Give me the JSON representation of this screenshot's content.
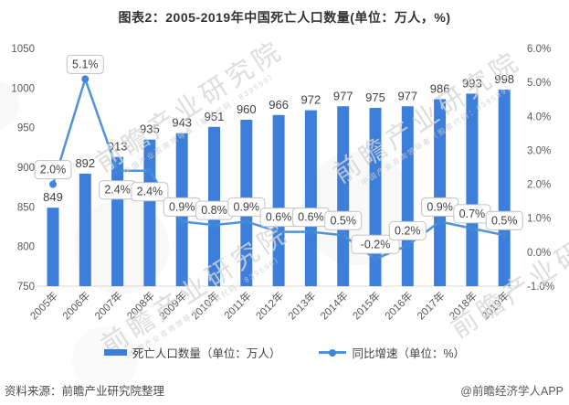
{
  "title": "图表2：2005-2019年中国死亡人口数量(单位：万人，%)",
  "chart_data": {
    "type": "bar",
    "categories": [
      "2005年",
      "2006年",
      "2007年",
      "2008年",
      "2009年",
      "2010年",
      "2011年",
      "2012年",
      "2013年",
      "2014年",
      "2015年",
      "2016年",
      "2017年",
      "2018年",
      "2019年"
    ],
    "series": [
      {
        "name": "死亡人口数量（单位：万人）",
        "type": "bar",
        "axis": "left",
        "values": [
          849,
          892,
          913,
          935,
          943,
          951,
          960,
          966,
          972,
          977,
          975,
          977,
          986,
          993,
          998
        ],
        "labels": [
          "849",
          "892",
          "913",
          "935",
          "943",
          "951",
          "960",
          "966",
          "972",
          "977",
          "975",
          "977",
          "986",
          "993",
          "998"
        ]
      },
      {
        "name": "同比增速（单位：%）",
        "type": "line",
        "axis": "right",
        "values": [
          2.0,
          5.1,
          2.4,
          2.4,
          0.9,
          0.8,
          0.9,
          0.6,
          0.6,
          0.5,
          -0.2,
          0.2,
          0.9,
          0.7,
          0.5
        ],
        "labels": [
          "2.0%",
          "5.1%",
          "2.4%",
          "2.4%",
          "0.9%",
          "0.8%",
          "0.9%",
          "0.6%",
          "0.6%",
          "0.5%",
          "-0.2%",
          "0.2%",
          "0.9%",
          "0.7%",
          "0.5%"
        ]
      }
    ],
    "left_axis": {
      "min": 750,
      "max": 1050,
      "tick_step": 50,
      "tick_labels": [
        "1050",
        "1000",
        "950",
        "900",
        "850",
        "800",
        "750"
      ]
    },
    "right_axis": {
      "min": -1.0,
      "max": 6.0,
      "tick_step": 1.0,
      "tick_labels": [
        "6.0%",
        "5.0%",
        "4.0%",
        "3.0%",
        "2.0%",
        "1.0%",
        "0.0%",
        "-1.0%"
      ]
    },
    "grid": false,
    "legend_position": "bottom"
  },
  "colors": {
    "bar": "#3D7EDB",
    "line": "#4F93DC",
    "marker": "#3F85D8",
    "axis_text": "#595959",
    "value_text": "#404040",
    "callout_bg": "#FFFFFF",
    "callout_border": "#C2C2C2",
    "baseline": "#D9D9D9",
    "legend_text": "#404040"
  },
  "legend": {
    "items": [
      {
        "label": "死亡人口数量（单位：万人）",
        "type": "bar"
      },
      {
        "label": "同比增速（单位：%）",
        "type": "line"
      }
    ]
  },
  "footer": {
    "source": "资料来源：前瞻产业研究院整理",
    "credit": "@前瞻经济学人APP"
  },
  "watermark": {
    "main": "前瞻产业研究院",
    "sub": "中国产业咨询领导者（股票代码：839599）"
  }
}
